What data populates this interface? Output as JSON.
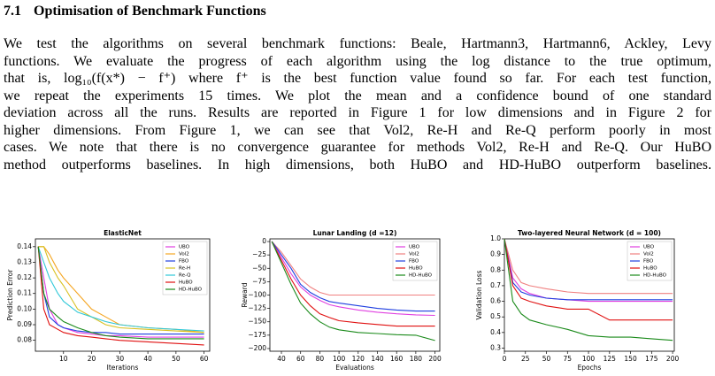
{
  "section": {
    "number": "7.1",
    "title": "Optimisation of Benchmark Functions"
  },
  "paragraph": [
    "We test the algorithms on several benchmark functions: Beale, Hartmann3, Hartmann6, Ackley, Levy",
    "functions. We evaluate the progress of each algorithm using the log distance to the true optimum,",
    "that is, log₁₀(f(x*) − f⁺) where f⁺ is the best function value found so far. For each test function,",
    "we repeat the experiments 15 times. We plot the mean and a confidence bound of one standard",
    "deviation across all the runs. Results are reported in Figure 1 for low dimensions and in Figure 2 for",
    "higher dimensions. From Figure 1, we can see that Vol2, Re-H and Re-Q perform poorly in most",
    "cases. We note that there is no convergence guarantee for methods Vol2, Re-H and Re-Q. Our HuBO",
    "method outperforms baselines. In high dimensions, both HuBO and HD-HuBO outperform baselines."
  ],
  "chart_data": [
    {
      "type": "line",
      "title": "ElasticNet",
      "x_label": "Iterations",
      "y_label": "Prediction Error",
      "legend": "upper right",
      "x": [
        1,
        3,
        5,
        8,
        10,
        15,
        20,
        25,
        30,
        40,
        50,
        60
      ],
      "xlim": [
        0,
        62
      ],
      "xticks": [
        10,
        20,
        30,
        40,
        50,
        60
      ],
      "ylim": [
        0.073,
        0.145
      ],
      "yticks": [
        0.08,
        0.09,
        {
          "value": 0.1,
          "label": "0.10"
        },
        0.11,
        0.12,
        0.13,
        0.14
      ],
      "series": [
        {
          "name": "UBO",
          "color": "#e040e0",
          "values": [
            0.14,
            0.12,
            0.1,
            0.09,
            0.088,
            0.085,
            0.084,
            0.083,
            0.083,
            0.082,
            0.082,
            0.082
          ]
        },
        {
          "name": "Vol2",
          "color": "#f5a623",
          "values": [
            0.14,
            0.14,
            0.135,
            0.125,
            0.12,
            0.11,
            0.1,
            0.095,
            0.09,
            0.088,
            0.087,
            0.085
          ]
        },
        {
          "name": "FBO",
          "color": "#1f3fe0",
          "values": [
            0.14,
            0.11,
            0.095,
            0.09,
            0.088,
            0.086,
            0.085,
            0.085,
            0.084,
            0.084,
            0.084,
            0.084
          ]
        },
        {
          "name": "Re-H",
          "color": "#d8c020",
          "values": [
            0.14,
            0.14,
            0.13,
            0.12,
            0.115,
            0.1,
            0.095,
            0.09,
            0.088,
            0.087,
            0.086,
            0.085
          ]
        },
        {
          "name": "Re-Q",
          "color": "#30c8d8",
          "values": [
            0.14,
            0.13,
            0.12,
            0.11,
            0.105,
            0.098,
            0.095,
            0.092,
            0.09,
            0.088,
            0.087,
            0.086
          ]
        },
        {
          "name": "HuBO",
          "color": "#e01010",
          "values": [
            0.14,
            0.1,
            0.09,
            0.087,
            0.085,
            0.083,
            0.082,
            0.081,
            0.08,
            0.079,
            0.078,
            0.077
          ]
        },
        {
          "name": "HD-HuBO",
          "color": "#1a8a1a",
          "values": [
            0.14,
            0.11,
            0.1,
            0.095,
            0.092,
            0.088,
            0.085,
            0.083,
            0.082,
            0.081,
            0.081,
            0.081
          ]
        }
      ]
    },
    {
      "type": "line",
      "title": "Lunar Landing (d =12)",
      "x_label": "Evaluations",
      "y_label": "Reward",
      "legend": "upper right",
      "x": [
        30,
        40,
        50,
        60,
        70,
        80,
        90,
        100,
        120,
        140,
        160,
        180,
        200
      ],
      "xlim": [
        28,
        205
      ],
      "xticks": [
        40,
        60,
        80,
        100,
        120,
        140,
        160,
        180,
        200
      ],
      "ylim": [
        -205,
        5
      ],
      "yticks": [
        0,
        {
          "value": -25,
          "label": "−25"
        },
        {
          "value": -50,
          "label": "−50"
        },
        {
          "value": -75,
          "label": "−75"
        },
        {
          "value": -100,
          "label": "−100"
        },
        {
          "value": -125,
          "label": "−125"
        },
        {
          "value": -150,
          "label": "−150"
        },
        {
          "value": -175,
          "label": "−175"
        },
        {
          "value": -200,
          "label": "−200"
        }
      ],
      "series": [
        {
          "name": "UBO",
          "color": "#e040e0",
          "values": [
            0,
            -30,
            -60,
            -85,
            -100,
            -110,
            -118,
            -122,
            -128,
            -132,
            -135,
            -137,
            -138
          ]
        },
        {
          "name": "Vol2",
          "color": "#f08080",
          "values": [
            0,
            -20,
            -45,
            -70,
            -85,
            -95,
            -100,
            -100,
            -100,
            -100,
            -100,
            -100,
            -100
          ]
        },
        {
          "name": "FBO",
          "color": "#1f3fe0",
          "values": [
            0,
            -25,
            -50,
            -80,
            -95,
            -105,
            -112,
            -115,
            -120,
            -125,
            -128,
            -130,
            -130
          ]
        },
        {
          "name": "HuBO",
          "color": "#e01010",
          "values": [
            0,
            -35,
            -70,
            -100,
            -120,
            -135,
            -142,
            -148,
            -152,
            -155,
            -158,
            -158,
            -158
          ]
        },
        {
          "name": "HD-HuBO",
          "color": "#1a8a1a",
          "values": [
            0,
            -40,
            -80,
            -115,
            -135,
            -150,
            -160,
            -165,
            -170,
            -172,
            -174,
            -175,
            -185
          ]
        }
      ]
    },
    {
      "type": "line",
      "title": "Two-layered Neural Network (d = 100)",
      "x_label": "Epochs",
      "y_label": "Validation Loss",
      "legend": "upper right",
      "x": [
        0,
        10,
        20,
        30,
        50,
        75,
        100,
        125,
        150,
        175,
        200
      ],
      "xlim": [
        0,
        202
      ],
      "xticks": [
        0,
        25,
        50,
        75,
        100,
        125,
        150,
        175,
        200
      ],
      "ylim": [
        0.28,
        1.0
      ],
      "yticks": [
        0.3,
        0.4,
        0.5,
        0.6,
        0.7,
        0.8,
        0.9,
        {
          "value": 1,
          "label": "1.0"
        }
      ],
      "series": [
        {
          "name": "UBO",
          "color": "#e040e0",
          "values": [
            1.0,
            0.75,
            0.68,
            0.65,
            0.62,
            0.61,
            0.6,
            0.6,
            0.6,
            0.6,
            0.6
          ]
        },
        {
          "name": "Vol2",
          "color": "#f08080",
          "values": [
            1.0,
            0.8,
            0.72,
            0.7,
            0.68,
            0.66,
            0.65,
            0.65,
            0.65,
            0.65,
            0.65
          ]
        },
        {
          "name": "FBO",
          "color": "#1f3fe0",
          "values": [
            1.0,
            0.72,
            0.66,
            0.64,
            0.62,
            0.61,
            0.61,
            0.61,
            0.61,
            0.61,
            0.61
          ]
        },
        {
          "name": "HuBO",
          "color": "#e01010",
          "values": [
            1.0,
            0.7,
            0.62,
            0.6,
            0.57,
            0.55,
            0.55,
            0.48,
            0.48,
            0.48,
            0.48
          ]
        },
        {
          "name": "HD-HuBO",
          "color": "#1a8a1a",
          "values": [
            1.0,
            0.6,
            0.52,
            0.48,
            0.45,
            0.42,
            0.38,
            0.37,
            0.37,
            0.36,
            0.35
          ]
        }
      ]
    }
  ]
}
